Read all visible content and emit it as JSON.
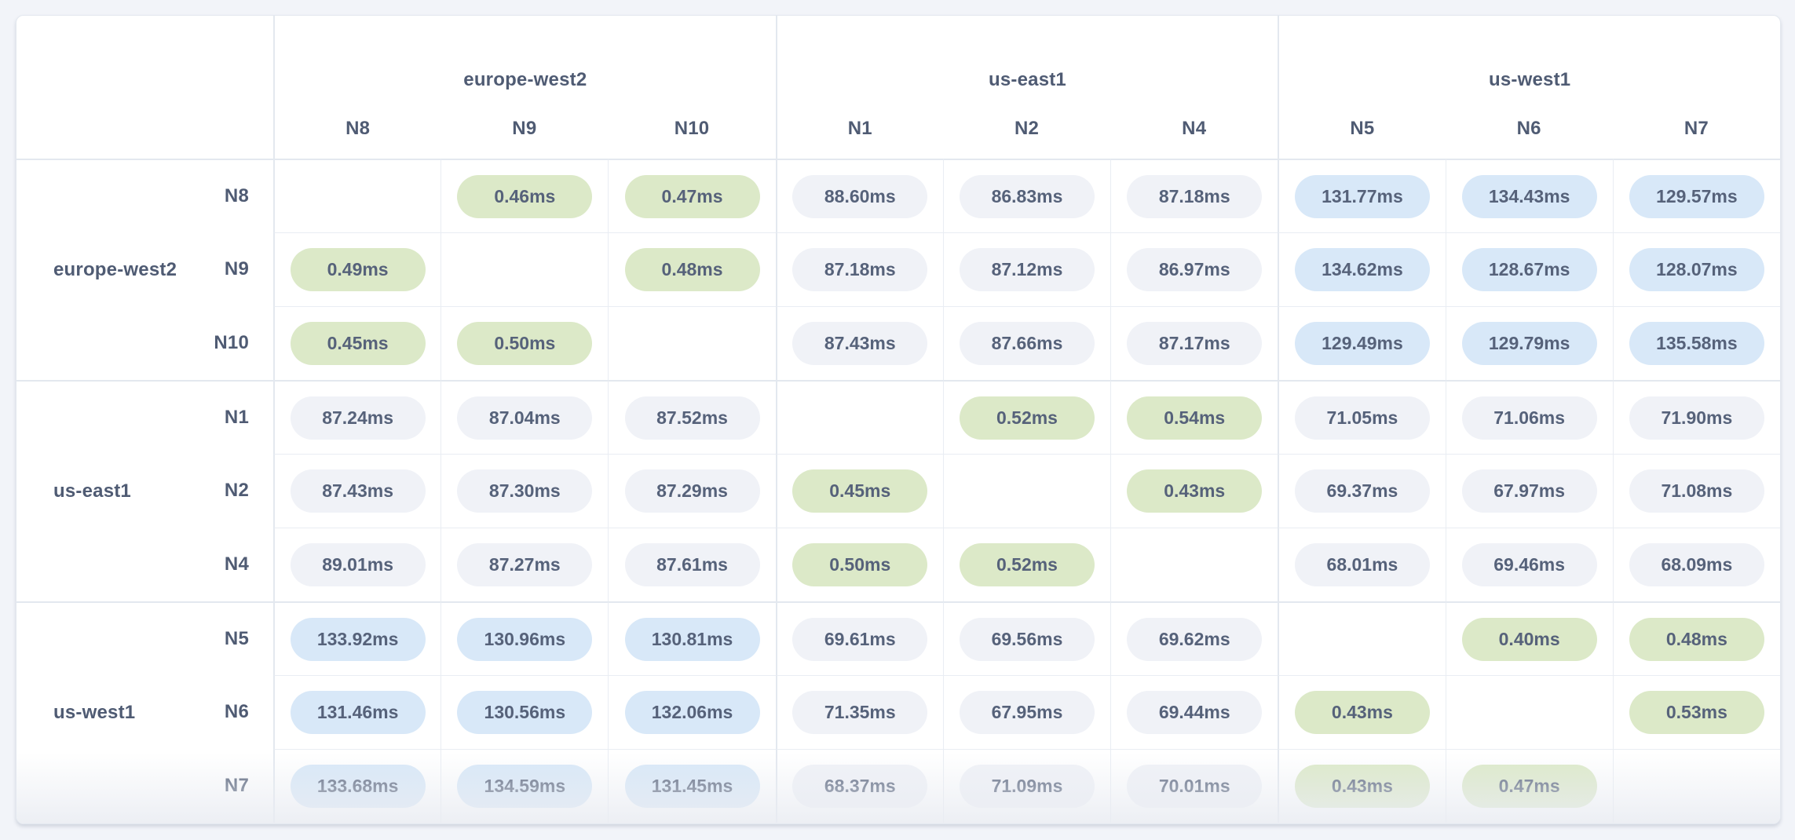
{
  "palette": {
    "page_background": "#f2f4f9",
    "card_background": "#ffffff",
    "card_border": "#e3e8ef",
    "grid_line": "#e9edf3",
    "group_line": "#e3e8ef",
    "label_text": "#4f5b73",
    "value_text": "#56627a",
    "pill_low_latency_bg": "#dce9c8",
    "pill_mid_latency_bg": "#f0f2f7",
    "pill_high_latency_bg": "#d8e8f8"
  },
  "matrix": {
    "unit": "ms",
    "thresholds": {
      "low_below_ms": 1,
      "high_at_or_above_ms": 100
    },
    "column_groups": [
      {
        "label": "europe-west2",
        "columns": [
          "N8",
          "N9",
          "N10"
        ]
      },
      {
        "label": "us-east1",
        "columns": [
          "N1",
          "N2",
          "N4"
        ]
      },
      {
        "label": "us-west1",
        "columns": [
          "N5",
          "N6",
          "N7"
        ]
      }
    ],
    "row_groups": [
      {
        "label": "europe-west2",
        "rows": [
          {
            "node": "N8",
            "cells": [
              null,
              "0.46ms",
              "0.47ms",
              "88.60ms",
              "86.83ms",
              "87.18ms",
              "131.77ms",
              "134.43ms",
              "129.57ms"
            ]
          },
          {
            "node": "N9",
            "cells": [
              "0.49ms",
              null,
              "0.48ms",
              "87.18ms",
              "87.12ms",
              "86.97ms",
              "134.62ms",
              "128.67ms",
              "128.07ms"
            ]
          },
          {
            "node": "N10",
            "cells": [
              "0.45ms",
              "0.50ms",
              null,
              "87.43ms",
              "87.66ms",
              "87.17ms",
              "129.49ms",
              "129.79ms",
              "135.58ms"
            ]
          }
        ]
      },
      {
        "label": "us-east1",
        "rows": [
          {
            "node": "N1",
            "cells": [
              "87.24ms",
              "87.04ms",
              "87.52ms",
              null,
              "0.52ms",
              "0.54ms",
              "71.05ms",
              "71.06ms",
              "71.90ms"
            ]
          },
          {
            "node": "N2",
            "cells": [
              "87.43ms",
              "87.30ms",
              "87.29ms",
              "0.45ms",
              null,
              "0.43ms",
              "69.37ms",
              "67.97ms",
              "71.08ms"
            ]
          },
          {
            "node": "N4",
            "cells": [
              "89.01ms",
              "87.27ms",
              "87.61ms",
              "0.50ms",
              "0.52ms",
              null,
              "68.01ms",
              "69.46ms",
              "68.09ms"
            ]
          }
        ]
      },
      {
        "label": "us-west1",
        "rows": [
          {
            "node": "N5",
            "cells": [
              "133.92ms",
              "130.96ms",
              "130.81ms",
              "69.61ms",
              "69.56ms",
              "69.62ms",
              null,
              "0.40ms",
              "0.48ms"
            ]
          },
          {
            "node": "N6",
            "cells": [
              "131.46ms",
              "130.56ms",
              "132.06ms",
              "71.35ms",
              "67.95ms",
              "69.44ms",
              "0.43ms",
              null,
              "0.53ms"
            ]
          },
          {
            "node": "N7",
            "cells": [
              "133.68ms",
              "134.59ms",
              "131.45ms",
              "68.37ms",
              "71.09ms",
              "70.01ms",
              "0.43ms",
              "0.47ms",
              null
            ]
          }
        ]
      }
    ]
  }
}
